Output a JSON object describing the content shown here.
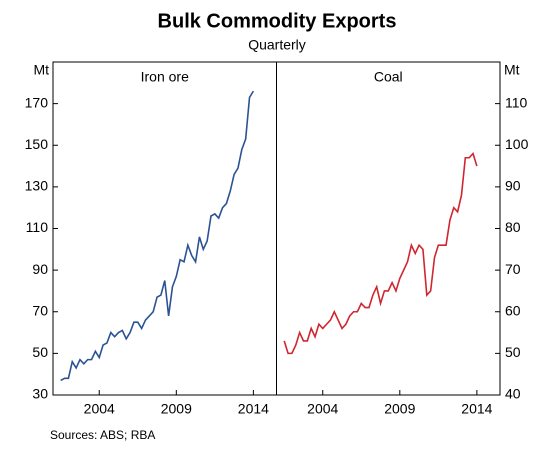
{
  "chart_data": [
    {
      "type": "line",
      "title": "Bulk Commodity Exports",
      "subtitle": "Quarterly",
      "panel_title": "Iron ore",
      "y_label": "Mt",
      "source": "Sources:  ABS; RBA",
      "yaxis_side": "left",
      "x": [
        2001.5,
        2001.75,
        2002,
        2002.25,
        2002.5,
        2002.75,
        2003,
        2003.25,
        2003.5,
        2003.75,
        2004,
        2004.25,
        2004.5,
        2004.75,
        2005,
        2005.25,
        2005.5,
        2005.75,
        2006,
        2006.25,
        2006.5,
        2006.75,
        2007,
        2007.25,
        2007.5,
        2007.75,
        2008,
        2008.25,
        2008.5,
        2008.75,
        2009,
        2009.25,
        2009.5,
        2009.75,
        2010,
        2010.25,
        2010.5,
        2010.75,
        2011,
        2011.25,
        2011.5,
        2011.75,
        2012,
        2012.25,
        2012.5,
        2012.75,
        2013,
        2013.25,
        2013.5,
        2013.75,
        2014
      ],
      "series": [
        {
          "name": "Iron ore",
          "color": "#2b5394",
          "values": [
            37,
            38,
            38,
            46,
            43,
            47,
            45,
            47,
            47,
            51,
            48,
            54,
            55,
            60,
            58,
            60,
            61,
            57,
            60,
            65,
            65,
            62,
            66,
            68,
            70,
            77,
            78,
            85,
            68,
            82,
            87,
            95,
            94,
            102,
            97,
            94,
            106,
            100,
            104,
            116,
            117,
            115,
            120,
            122,
            128,
            136,
            139,
            148,
            153,
            173,
            176
          ]
        }
      ],
      "xlim": [
        2001,
        2015.5
      ],
      "xticks": [
        2004,
        2009,
        2014
      ],
      "ylim": [
        30,
        190
      ],
      "yticks": [
        30,
        50,
        70,
        90,
        110,
        130,
        150,
        170
      ]
    },
    {
      "type": "line",
      "panel_title": "Coal",
      "y_label": "Mt",
      "yaxis_side": "right",
      "x": [
        2001.5,
        2001.75,
        2002,
        2002.25,
        2002.5,
        2002.75,
        2003,
        2003.25,
        2003.5,
        2003.75,
        2004,
        2004.25,
        2004.5,
        2004.75,
        2005,
        2005.25,
        2005.5,
        2005.75,
        2006,
        2006.25,
        2006.5,
        2006.75,
        2007,
        2007.25,
        2007.5,
        2007.75,
        2008,
        2008.25,
        2008.5,
        2008.75,
        2009,
        2009.25,
        2009.5,
        2009.75,
        2010,
        2010.25,
        2010.5,
        2010.75,
        2011,
        2011.25,
        2011.5,
        2011.75,
        2012,
        2012.25,
        2012.5,
        2012.75,
        2013,
        2013.25,
        2013.5,
        2013.75,
        2014
      ],
      "series": [
        {
          "name": "Coal",
          "color": "#d0262f",
          "values": [
            53,
            50,
            50,
            52,
            55,
            53,
            53,
            56,
            54,
            57,
            56,
            57,
            58,
            60,
            58,
            56,
            57,
            59,
            60,
            60,
            62,
            61,
            61,
            64,
            66,
            62,
            65,
            65,
            67,
            65,
            68,
            70,
            72,
            76,
            74,
            76,
            75,
            64,
            65,
            73,
            76,
            76,
            76,
            82,
            85,
            84,
            88,
            97,
            97,
            98,
            95
          ]
        }
      ],
      "xlim": [
        2001,
        2015.5
      ],
      "xticks": [
        2004,
        2009,
        2014
      ],
      "ylim": [
        40,
        120
      ],
      "yticks": [
        40,
        50,
        60,
        70,
        80,
        90,
        100,
        110
      ]
    }
  ]
}
